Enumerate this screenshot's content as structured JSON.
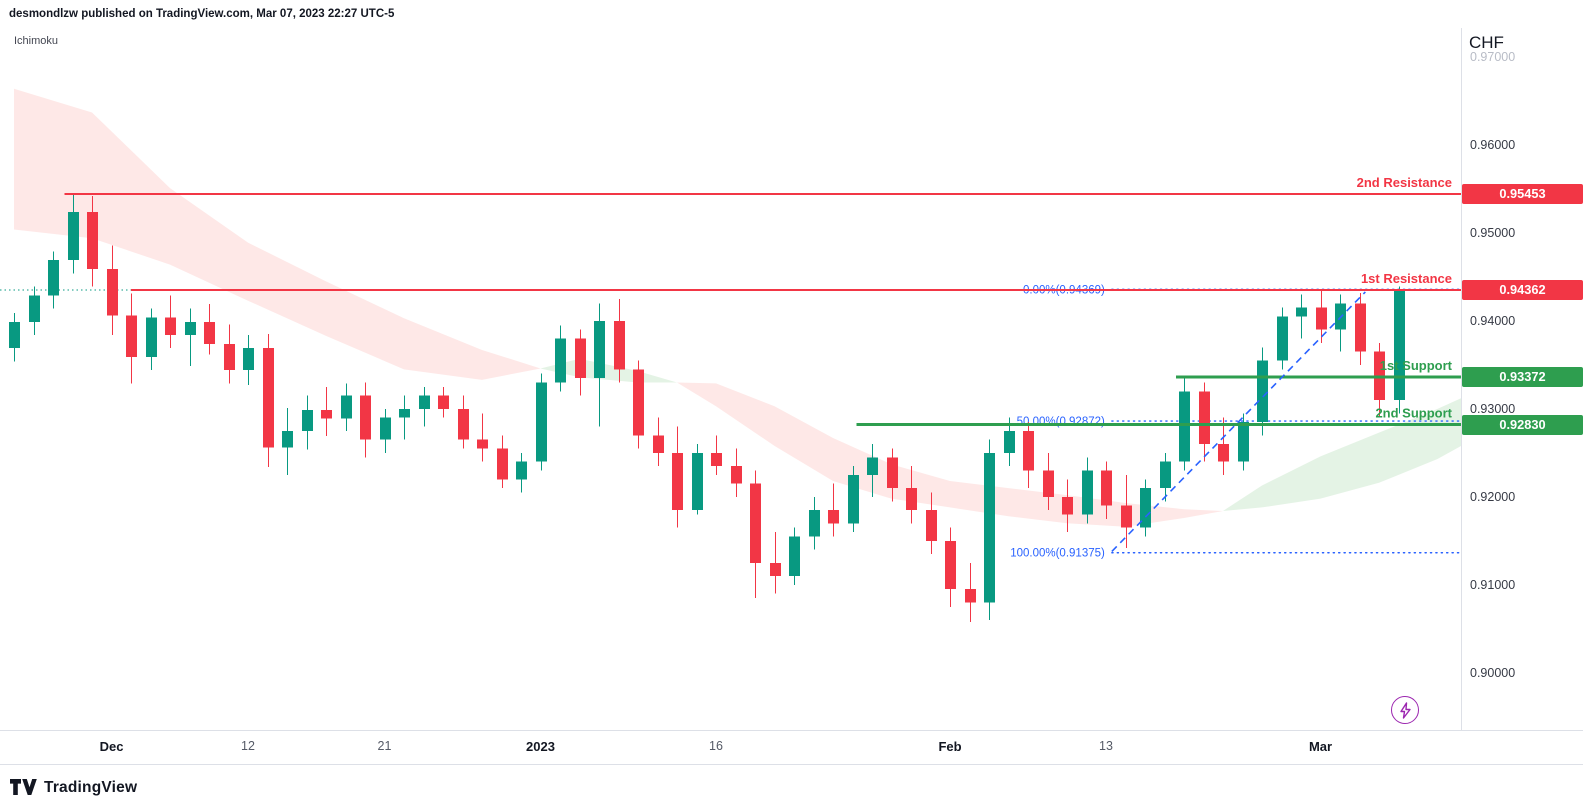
{
  "header": {
    "publish_line": "desmondlzw published on TradingView.com, Mar 07, 2023 22:27 UTC-5"
  },
  "chart": {
    "indicator_label": "Ichimoku",
    "symbol_label": "CHF"
  },
  "footer": {
    "logo_text": "TradingView"
  },
  "chart_data": {
    "type": "candlestick",
    "symbol": "CHF",
    "ylim": [
      0.8936,
      0.9734
    ],
    "last_price": 0.9436,
    "dates": [
      "Nov 24",
      "Nov 25",
      "Nov 28",
      "Nov 29",
      "Nov 30",
      "Dec 1",
      "Dec 2",
      "Dec 5",
      "Dec 6",
      "Dec 7",
      "Dec 8",
      "Dec 9",
      "Dec 12",
      "Dec 13",
      "Dec 14",
      "Dec 15",
      "Dec 16",
      "Dec 19",
      "Dec 20",
      "Dec 21",
      "Dec 22",
      "Dec 23",
      "Dec 26",
      "Dec 27",
      "Dec 28",
      "Dec 29",
      "Dec 30",
      "Jan 3",
      "Jan 4",
      "Jan 5",
      "Jan 6",
      "Jan 9",
      "Jan 10",
      "Jan 11",
      "Jan 12",
      "Jan 13",
      "Jan 16",
      "Jan 17",
      "Jan 18",
      "Jan 19",
      "Jan 20",
      "Jan 23",
      "Jan 24",
      "Jan 25",
      "Jan 26",
      "Jan 27",
      "Jan 30",
      "Jan 31",
      "Feb 1",
      "Feb 2",
      "Feb 3",
      "Feb 6",
      "Feb 7",
      "Feb 8",
      "Feb 9",
      "Feb 10",
      "Feb 13",
      "Feb 14",
      "Feb 15",
      "Feb 16",
      "Feb 17",
      "Feb 21",
      "Feb 22",
      "Feb 23",
      "Feb 24",
      "Feb 27",
      "Feb 28",
      "Mar 1",
      "Mar 2",
      "Mar 3",
      "Mar 6",
      "Mar 7"
    ],
    "ohlc": [
      [
        0.937,
        0.941,
        0.9355,
        0.94
      ],
      [
        0.94,
        0.944,
        0.9385,
        0.943
      ],
      [
        0.943,
        0.948,
        0.9415,
        0.947
      ],
      [
        0.947,
        0.9545,
        0.9455,
        0.9525
      ],
      [
        0.9525,
        0.9543,
        0.944,
        0.946
      ],
      [
        0.946,
        0.9487,
        0.9385,
        0.9407
      ],
      [
        0.9407,
        0.9432,
        0.933,
        0.936
      ],
      [
        0.936,
        0.9415,
        0.9345,
        0.9405
      ],
      [
        0.9405,
        0.943,
        0.937,
        0.9385
      ],
      [
        0.9385,
        0.9415,
        0.935,
        0.94
      ],
      [
        0.94,
        0.942,
        0.9363,
        0.9375
      ],
      [
        0.9375,
        0.9397,
        0.933,
        0.9345
      ],
      [
        0.9345,
        0.9385,
        0.9328,
        0.937
      ],
      [
        0.937,
        0.9386,
        0.9235,
        0.9257
      ],
      [
        0.9257,
        0.9302,
        0.9226,
        0.9276
      ],
      [
        0.9276,
        0.9316,
        0.9255,
        0.93
      ],
      [
        0.93,
        0.9326,
        0.927,
        0.929
      ],
      [
        0.929,
        0.933,
        0.9276,
        0.9316
      ],
      [
        0.9316,
        0.9331,
        0.9246,
        0.9266
      ],
      [
        0.9266,
        0.9301,
        0.9251,
        0.9291
      ],
      [
        0.9291,
        0.9316,
        0.9266,
        0.9301
      ],
      [
        0.9301,
        0.9326,
        0.9281,
        0.9316
      ],
      [
        0.9316,
        0.9326,
        0.9291,
        0.9301
      ],
      [
        0.9301,
        0.9316,
        0.9256,
        0.9266
      ],
      [
        0.9266,
        0.9296,
        0.9241,
        0.9256
      ],
      [
        0.9256,
        0.9271,
        0.9211,
        0.9221
      ],
      [
        0.9221,
        0.9251,
        0.9206,
        0.9241
      ],
      [
        0.9241,
        0.9341,
        0.9231,
        0.9331
      ],
      [
        0.9331,
        0.9396,
        0.9321,
        0.9381
      ],
      [
        0.9381,
        0.9391,
        0.9316,
        0.9336
      ],
      [
        0.9336,
        0.9421,
        0.9281,
        0.9401
      ],
      [
        0.9401,
        0.9426,
        0.9331,
        0.9346
      ],
      [
        0.9346,
        0.9356,
        0.9256,
        0.9271
      ],
      [
        0.9271,
        0.9291,
        0.9236,
        0.9251
      ],
      [
        0.9251,
        0.9281,
        0.9166,
        0.9186
      ],
      [
        0.9186,
        0.9261,
        0.9181,
        0.9251
      ],
      [
        0.9251,
        0.9271,
        0.9226,
        0.9236
      ],
      [
        0.9236,
        0.9256,
        0.9201,
        0.9216
      ],
      [
        0.9216,
        0.9231,
        0.9086,
        0.9126
      ],
      [
        0.9126,
        0.9161,
        0.9091,
        0.9111
      ],
      [
        0.9111,
        0.9166,
        0.9101,
        0.9156
      ],
      [
        0.9156,
        0.9201,
        0.9141,
        0.9186
      ],
      [
        0.9186,
        0.9216,
        0.9156,
        0.9171
      ],
      [
        0.9171,
        0.9236,
        0.9161,
        0.9226
      ],
      [
        0.9226,
        0.9261,
        0.9201,
        0.9246
      ],
      [
        0.9246,
        0.9256,
        0.9196,
        0.9211
      ],
      [
        0.9211,
        0.9236,
        0.9171,
        0.9186
      ],
      [
        0.9186,
        0.9206,
        0.9136,
        0.9151
      ],
      [
        0.9151,
        0.9166,
        0.9076,
        0.9096
      ],
      [
        0.9096,
        0.9126,
        0.9059,
        0.9081
      ],
      [
        0.9081,
        0.9266,
        0.9061,
        0.9251
      ],
      [
        0.9251,
        0.9291,
        0.9236,
        0.9276
      ],
      [
        0.9276,
        0.9286,
        0.9211,
        0.9231
      ],
      [
        0.9231,
        0.9251,
        0.9186,
        0.9201
      ],
      [
        0.9201,
        0.9221,
        0.9161,
        0.9181
      ],
      [
        0.9181,
        0.9246,
        0.9171,
        0.9231
      ],
      [
        0.9231,
        0.9241,
        0.9176,
        0.9191
      ],
      [
        0.9191,
        0.9226,
        0.9143,
        0.9166
      ],
      [
        0.9166,
        0.9221,
        0.9156,
        0.9211
      ],
      [
        0.9211,
        0.9251,
        0.9196,
        0.9241
      ],
      [
        0.9241,
        0.9336,
        0.9231,
        0.9321
      ],
      [
        0.9321,
        0.9331,
        0.9241,
        0.9261
      ],
      [
        0.9261,
        0.9291,
        0.9226,
        0.9241
      ],
      [
        0.9241,
        0.9296,
        0.9231,
        0.9286
      ],
      [
        0.9286,
        0.9371,
        0.9271,
        0.9356
      ],
      [
        0.9356,
        0.9416,
        0.9346,
        0.9406
      ],
      [
        0.9406,
        0.9431,
        0.9381,
        0.9416
      ],
      [
        0.9416,
        0.9436,
        0.9376,
        0.9391
      ],
      [
        0.9391,
        0.9431,
        0.9366,
        0.9421
      ],
      [
        0.9421,
        0.9433,
        0.9351,
        0.9366
      ],
      [
        0.9366,
        0.9376,
        0.9291,
        0.9311
      ],
      [
        0.9311,
        0.944,
        0.9296,
        0.9436
      ]
    ],
    "x_ticks": [
      {
        "index": 5,
        "label": "Dec",
        "major": true
      },
      {
        "index": 12,
        "label": "12",
        "major": false
      },
      {
        "index": 19,
        "label": "21",
        "major": false
      },
      {
        "index": 27,
        "label": "2023",
        "major": true
      },
      {
        "index": 36,
        "label": "16",
        "major": false
      },
      {
        "index": 48,
        "label": "Feb",
        "major": true
      },
      {
        "index": 56,
        "label": "13",
        "major": false
      },
      {
        "index": 67,
        "label": "Mar",
        "major": true
      }
    ],
    "y_ticks": [
      {
        "price": 0.97,
        "label": "0.97000",
        "muted": true
      },
      {
        "price": 0.96,
        "label": "0.96000"
      },
      {
        "price": 0.95,
        "label": "0.95000"
      },
      {
        "price": 0.94,
        "label": "0.94000"
      },
      {
        "price": 0.93,
        "label": "0.93000"
      },
      {
        "price": 0.92,
        "label": "0.92000"
      },
      {
        "price": 0.91,
        "label": "0.91000"
      },
      {
        "price": 0.9,
        "label": "0.90000"
      }
    ],
    "levels": [
      {
        "name": "2nd Resistance",
        "price": 0.95453,
        "badge": "0.95453",
        "kind": "resistance",
        "start_index": 2.6
      },
      {
        "name": "1st Resistance",
        "price": 0.94362,
        "badge": "0.94362",
        "kind": "resistance",
        "start_index": 6.0
      },
      {
        "name": "1st Support",
        "price": 0.93372,
        "badge": "0.93372",
        "kind": "support",
        "start_index": 59.6
      },
      {
        "name": "2nd Support",
        "price": 0.9283,
        "badge": "0.92830",
        "kind": "support",
        "start_index": 43.2
      }
    ],
    "fibonacci": {
      "start_index": 56.3,
      "levels": [
        {
          "label": "0.00%(0.94369)",
          "price": 0.94369
        },
        {
          "label": "50.00%(0.92872)",
          "price": 0.92872
        },
        {
          "label": "100.00%(0.91375)",
          "price": 0.91375
        }
      ]
    },
    "trendline": {
      "from_index": 56.3,
      "from_price": 0.9139,
      "to_index": 69.3,
      "to_price": 0.9434
    },
    "ichimoku_cloud": {
      "anchors": [
        [
          0,
          0.9505,
          0.9665
        ],
        [
          4,
          0.9495,
          0.9638
        ],
        [
          8,
          0.9465,
          0.9552
        ],
        [
          12,
          0.9424,
          0.949
        ],
        [
          16,
          0.9384,
          0.9446
        ],
        [
          20,
          0.9346,
          0.9404
        ],
        [
          24,
          0.9334,
          0.9368
        ],
        [
          27,
          0.9347,
          0.9347
        ],
        [
          29,
          0.9358,
          0.9337
        ],
        [
          32,
          0.9344,
          0.9331
        ],
        [
          34,
          0.9331,
          0.9331
        ],
        [
          36,
          0.9304,
          0.933
        ],
        [
          39,
          0.9259,
          0.9304
        ],
        [
          42,
          0.9219,
          0.9268
        ],
        [
          45,
          0.9199,
          0.9238
        ],
        [
          48,
          0.9189,
          0.9219
        ],
        [
          51,
          0.9179,
          0.9211
        ],
        [
          54,
          0.9171,
          0.9203
        ],
        [
          57,
          0.9167,
          0.9194
        ],
        [
          60,
          0.9177,
          0.9187
        ],
        [
          62,
          0.9185,
          0.9185
        ],
        [
          64,
          0.9214,
          0.9189
        ],
        [
          67,
          0.9247,
          0.9199
        ],
        [
          70,
          0.9274,
          0.9217
        ],
        [
          73,
          0.9301,
          0.9244
        ],
        [
          76,
          0.9331,
          0.9281
        ]
      ]
    },
    "colors": {
      "up": "#089981",
      "down": "#f23645",
      "resistance": "#f23645",
      "support": "#2e9e4f",
      "fib": "#2962ff",
      "cloud_bull": "rgba(76,175,80,0.15)",
      "cloud_bear": "rgba(244,67,54,0.12)",
      "last_price": "#089981",
      "flash_icon": "#9c27b0"
    }
  }
}
